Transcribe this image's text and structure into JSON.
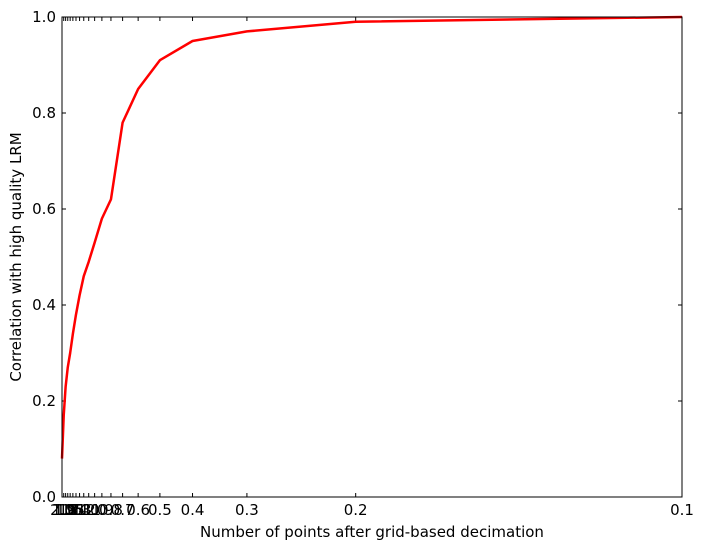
{
  "chart_data": {
    "type": "line",
    "title": "",
    "xlabel": "Number of points after grid-based decimation",
    "ylabel": "Correlation with high quality LRM",
    "x_scale": "reciprocal",
    "xlim": [
      2.0,
      0.1
    ],
    "ylim": [
      0.0,
      1.0
    ],
    "grid": false,
    "legend": "none",
    "x_ticks": [
      {
        "value": 2.0,
        "label": "2.0"
      },
      {
        "value": 1.9,
        "label": "1.9"
      },
      {
        "value": 1.8,
        "label": "1.8"
      },
      {
        "value": 1.7,
        "label": "1.7"
      },
      {
        "value": 1.6,
        "label": "1.6"
      },
      {
        "value": 1.5,
        "label": "1.5"
      },
      {
        "value": 1.4,
        "label": "1.4"
      },
      {
        "value": 1.3,
        "label": "1.3"
      },
      {
        "value": 1.2,
        "label": "1.2"
      },
      {
        "value": 1.1,
        "label": "1.1"
      },
      {
        "value": 1.0,
        "label": "1.0"
      },
      {
        "value": 0.9,
        "label": "0.9"
      },
      {
        "value": 0.8,
        "label": "0.8"
      },
      {
        "value": 0.7,
        "label": "0.7"
      },
      {
        "value": 0.6,
        "label": "0.6"
      },
      {
        "value": 0.5,
        "label": "0.5"
      },
      {
        "value": 0.4,
        "label": "0.4"
      },
      {
        "value": 0.3,
        "label": "0.3"
      },
      {
        "value": 0.2,
        "label": "0.2"
      },
      {
        "value": 0.1,
        "label": "0.1"
      }
    ],
    "y_ticks": [
      {
        "value": 0.0,
        "label": "0.0"
      },
      {
        "value": 0.2,
        "label": "0.2"
      },
      {
        "value": 0.4,
        "label": "0.4"
      },
      {
        "value": 0.6,
        "label": "0.6"
      },
      {
        "value": 0.8,
        "label": "0.8"
      },
      {
        "value": 1.0,
        "label": "1.0"
      }
    ],
    "series": [
      {
        "color": "#ff0000",
        "x": [
          2.0,
          1.9,
          1.8,
          1.7,
          1.6,
          1.5,
          1.4,
          1.3,
          1.2,
          1.1,
          1.0,
          0.9,
          0.8,
          0.7,
          0.6,
          0.5,
          0.4,
          0.3,
          0.2,
          0.1
        ],
        "y": [
          0.08,
          0.17,
          0.23,
          0.27,
          0.3,
          0.34,
          0.38,
          0.42,
          0.46,
          0.49,
          0.53,
          0.58,
          0.62,
          0.78,
          0.85,
          0.91,
          0.95,
          0.97,
          0.99,
          1.0
        ]
      }
    ]
  }
}
